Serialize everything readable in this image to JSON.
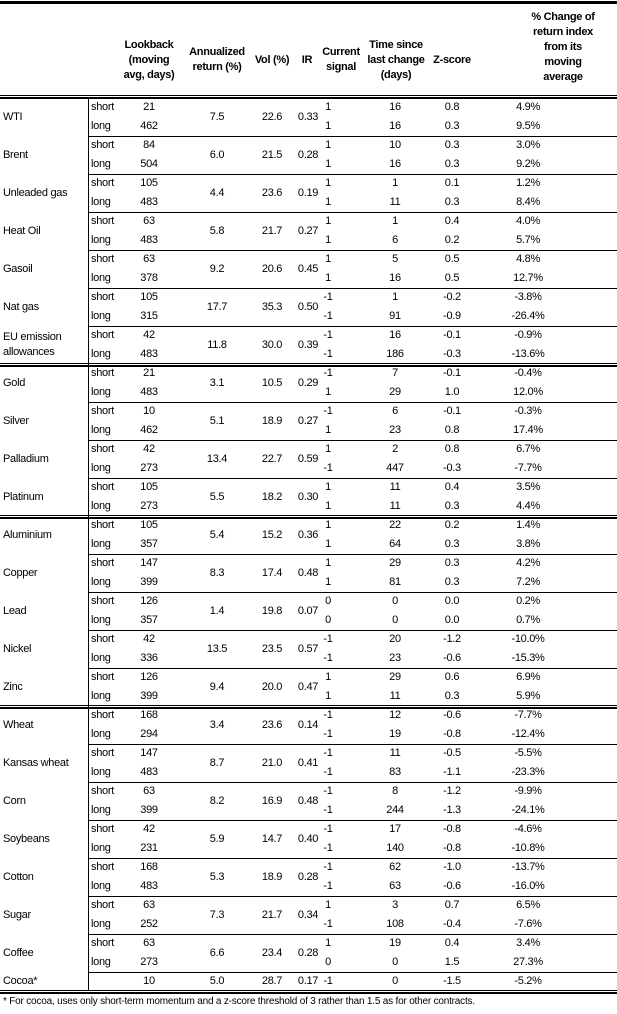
{
  "headers": {
    "lookback": [
      "Lookback",
      "(moving",
      "avg, days)"
    ],
    "annualized": [
      "Annualized",
      "return (%)"
    ],
    "vol": [
      "Vol (%)"
    ],
    "ir": [
      "IR"
    ],
    "signal": [
      "Current",
      "signal"
    ],
    "time": [
      "Time since",
      "last change",
      "(days)"
    ],
    "zscore": [
      "Z-score"
    ],
    "pct": [
      "% Change of",
      "return index",
      "from its",
      "moving",
      "average"
    ]
  },
  "groups": [
    {
      "commodities": [
        {
          "name": [
            "WTI"
          ],
          "ann": "7.5",
          "vol": "22.6",
          "ir": "0.33",
          "rows": [
            {
              "term": "short",
              "lookback": "21",
              "signal": "1",
              "time": "16",
              "z": "0.8",
              "pct": "4.9%"
            },
            {
              "term": "long",
              "lookback": "462",
              "signal": "1",
              "time": "16",
              "z": "0.3",
              "pct": "9.5%"
            }
          ]
        },
        {
          "name": [
            "Brent"
          ],
          "ann": "6.0",
          "vol": "21.5",
          "ir": "0.28",
          "rows": [
            {
              "term": "short",
              "lookback": "84",
              "signal": "1",
              "time": "10",
              "z": "0.3",
              "pct": "3.0%"
            },
            {
              "term": "long",
              "lookback": "504",
              "signal": "1",
              "time": "16",
              "z": "0.3",
              "pct": "9.2%"
            }
          ]
        },
        {
          "name": [
            "Unleaded gas"
          ],
          "ann": "4.4",
          "vol": "23.6",
          "ir": "0.19",
          "rows": [
            {
              "term": "short",
              "lookback": "105",
              "signal": "1",
              "time": "1",
              "z": "0.1",
              "pct": "1.2%"
            },
            {
              "term": "long",
              "lookback": "483",
              "signal": "1",
              "time": "11",
              "z": "0.3",
              "pct": "8.4%"
            }
          ]
        },
        {
          "name": [
            "Heat Oil"
          ],
          "ann": "5.8",
          "vol": "21.7",
          "ir": "0.27",
          "rows": [
            {
              "term": "short",
              "lookback": "63",
              "signal": "1",
              "time": "1",
              "z": "0.4",
              "pct": "4.0%"
            },
            {
              "term": "long",
              "lookback": "483",
              "signal": "1",
              "time": "6",
              "z": "0.2",
              "pct": "5.7%"
            }
          ]
        },
        {
          "name": [
            "Gasoil"
          ],
          "ann": "9.2",
          "vol": "20.6",
          "ir": "0.45",
          "rows": [
            {
              "term": "short",
              "lookback": "63",
              "signal": "1",
              "time": "5",
              "z": "0.5",
              "pct": "4.8%"
            },
            {
              "term": "long",
              "lookback": "378",
              "signal": "1",
              "time": "16",
              "z": "0.5",
              "pct": "12.7%"
            }
          ]
        },
        {
          "name": [
            "Nat gas"
          ],
          "ann": "17.7",
          "vol": "35.3",
          "ir": "0.50",
          "rows": [
            {
              "term": "short",
              "lookback": "105",
              "signal": "-1",
              "time": "1",
              "z": "-0.2",
              "pct": "-3.8%"
            },
            {
              "term": "long",
              "lookback": "315",
              "signal": "-1",
              "time": "91",
              "z": "-0.9",
              "pct": "-26.4%"
            }
          ]
        },
        {
          "name": [
            "EU emission",
            "allowances"
          ],
          "ann": "11.8",
          "vol": "30.0",
          "ir": "0.39",
          "rows": [
            {
              "term": "short",
              "lookback": "42",
              "signal": "-1",
              "time": "16",
              "z": "-0.1",
              "pct": "-0.9%"
            },
            {
              "term": "long",
              "lookback": "483",
              "signal": "-1",
              "time": "186",
              "z": "-0.3",
              "pct": "-13.6%"
            }
          ]
        }
      ]
    },
    {
      "commodities": [
        {
          "name": [
            "Gold"
          ],
          "ann": "3.1",
          "vol": "10.5",
          "ir": "0.29",
          "rows": [
            {
              "term": "short",
              "lookback": "21",
              "signal": "-1",
              "time": "7",
              "z": "-0.1",
              "pct": "-0.4%"
            },
            {
              "term": "long",
              "lookback": "483",
              "signal": "1",
              "time": "29",
              "z": "1.0",
              "pct": "12.0%"
            }
          ]
        },
        {
          "name": [
            "Silver"
          ],
          "ann": "5.1",
          "vol": "18.9",
          "ir": "0.27",
          "rows": [
            {
              "term": "short",
              "lookback": "10",
              "signal": "-1",
              "time": "6",
              "z": "-0.1",
              "pct": "-0.3%"
            },
            {
              "term": "long",
              "lookback": "462",
              "signal": "1",
              "time": "23",
              "z": "0.8",
              "pct": "17.4%"
            }
          ]
        },
        {
          "name": [
            "Palladium"
          ],
          "ann": "13.4",
          "vol": "22.7",
          "ir": "0.59",
          "rows": [
            {
              "term": "short",
              "lookback": "42",
              "signal": "1",
              "time": "2",
              "z": "0.8",
              "pct": "6.7%"
            },
            {
              "term": "long",
              "lookback": "273",
              "signal": "-1",
              "time": "447",
              "z": "-0.3",
              "pct": "-7.7%"
            }
          ]
        },
        {
          "name": [
            "Platinum"
          ],
          "ann": "5.5",
          "vol": "18.2",
          "ir": "0.30",
          "rows": [
            {
              "term": "short",
              "lookback": "105",
              "signal": "1",
              "time": "11",
              "z": "0.4",
              "pct": "3.5%"
            },
            {
              "term": "long",
              "lookback": "273",
              "signal": "1",
              "time": "11",
              "z": "0.3",
              "pct": "4.4%"
            }
          ]
        }
      ]
    },
    {
      "commodities": [
        {
          "name": [
            "Aluminium"
          ],
          "ann": "5.4",
          "vol": "15.2",
          "ir": "0.36",
          "rows": [
            {
              "term": "short",
              "lookback": "105",
              "signal": "1",
              "time": "22",
              "z": "0.2",
              "pct": "1.4%"
            },
            {
              "term": "long",
              "lookback": "357",
              "signal": "1",
              "time": "64",
              "z": "0.3",
              "pct": "3.8%"
            }
          ]
        },
        {
          "name": [
            "Copper"
          ],
          "ann": "8.3",
          "vol": "17.4",
          "ir": "0.48",
          "rows": [
            {
              "term": "short",
              "lookback": "147",
              "signal": "1",
              "time": "29",
              "z": "0.3",
              "pct": "4.2%"
            },
            {
              "term": "long",
              "lookback": "399",
              "signal": "1",
              "time": "81",
              "z": "0.3",
              "pct": "7.2%"
            }
          ]
        },
        {
          "name": [
            "Lead"
          ],
          "ann": "1.4",
          "vol": "19.8",
          "ir": "0.07",
          "rows": [
            {
              "term": "short",
              "lookback": "126",
              "signal": "0",
              "time": "0",
              "z": "0.0",
              "pct": "0.2%"
            },
            {
              "term": "long",
              "lookback": "357",
              "signal": "0",
              "time": "0",
              "z": "0.0",
              "pct": "0.7%"
            }
          ]
        },
        {
          "name": [
            "Nickel"
          ],
          "ann": "13.5",
          "vol": "23.5",
          "ir": "0.57",
          "rows": [
            {
              "term": "short",
              "lookback": "42",
              "signal": "-1",
              "time": "20",
              "z": "-1.2",
              "pct": "-10.0%"
            },
            {
              "term": "long",
              "lookback": "336",
              "signal": "-1",
              "time": "23",
              "z": "-0.6",
              "pct": "-15.3%"
            }
          ]
        },
        {
          "name": [
            "Zinc"
          ],
          "ann": "9.4",
          "vol": "20.0",
          "ir": "0.47",
          "rows": [
            {
              "term": "short",
              "lookback": "126",
              "signal": "1",
              "time": "29",
              "z": "0.6",
              "pct": "6.9%"
            },
            {
              "term": "long",
              "lookback": "399",
              "signal": "1",
              "time": "11",
              "z": "0.3",
              "pct": "5.9%"
            }
          ]
        }
      ]
    },
    {
      "commodities": [
        {
          "name": [
            "Wheat"
          ],
          "ann": "3.4",
          "vol": "23.6",
          "ir": "0.14",
          "rows": [
            {
              "term": "short",
              "lookback": "168",
              "signal": "-1",
              "time": "12",
              "z": "-0.6",
              "pct": "-7.7%"
            },
            {
              "term": "long",
              "lookback": "294",
              "signal": "-1",
              "time": "19",
              "z": "-0.8",
              "pct": "-12.4%"
            }
          ]
        },
        {
          "name": [
            "Kansas wheat"
          ],
          "ann": "8.7",
          "vol": "21.0",
          "ir": "0.41",
          "rows": [
            {
              "term": "short",
              "lookback": "147",
              "signal": "-1",
              "time": "11",
              "z": "-0.5",
              "pct": "-5.5%"
            },
            {
              "term": "long",
              "lookback": "483",
              "signal": "-1",
              "time": "83",
              "z": "-1.1",
              "pct": "-23.3%"
            }
          ]
        },
        {
          "name": [
            "Corn"
          ],
          "ann": "8.2",
          "vol": "16.9",
          "ir": "0.48",
          "rows": [
            {
              "term": "short",
              "lookback": "63",
              "signal": "-1",
              "time": "8",
              "z": "-1.2",
              "pct": "-9.9%"
            },
            {
              "term": "long",
              "lookback": "399",
              "signal": "-1",
              "time": "244",
              "z": "-1.3",
              "pct": "-24.1%"
            }
          ]
        },
        {
          "name": [
            "Soybeans"
          ],
          "ann": "5.9",
          "vol": "14.7",
          "ir": "0.40",
          "rows": [
            {
              "term": "short",
              "lookback": "42",
              "signal": "-1",
              "time": "17",
              "z": "-0.8",
              "pct": "-4.6%"
            },
            {
              "term": "long",
              "lookback": "231",
              "signal": "-1",
              "time": "140",
              "z": "-0.8",
              "pct": "-10.8%"
            }
          ]
        },
        {
          "name": [
            "Cotton"
          ],
          "ann": "5.3",
          "vol": "18.9",
          "ir": "0.28",
          "rows": [
            {
              "term": "short",
              "lookback": "168",
              "signal": "-1",
              "time": "62",
              "z": "-1.0",
              "pct": "-13.7%"
            },
            {
              "term": "long",
              "lookback": "483",
              "signal": "-1",
              "time": "63",
              "z": "-0.6",
              "pct": "-16.0%"
            }
          ]
        },
        {
          "name": [
            "Sugar"
          ],
          "ann": "7.3",
          "vol": "21.7",
          "ir": "0.34",
          "rows": [
            {
              "term": "short",
              "lookback": "63",
              "signal": "1",
              "time": "3",
              "z": "0.7",
              "pct": "6.5%"
            },
            {
              "term": "long",
              "lookback": "252",
              "signal": "-1",
              "time": "108",
              "z": "-0.4",
              "pct": "-7.6%"
            }
          ]
        },
        {
          "name": [
            "Coffee"
          ],
          "ann": "6.6",
          "vol": "23.4",
          "ir": "0.28",
          "rows": [
            {
              "term": "short",
              "lookback": "63",
              "signal": "1",
              "time": "19",
              "z": "0.4",
              "pct": "3.4%"
            },
            {
              "term": "long",
              "lookback": "273",
              "signal": "0",
              "time": "0",
              "z": "1.5",
              "pct": "27.3%"
            }
          ]
        },
        {
          "name": [
            "Cocoa*"
          ],
          "ann": "5.0",
          "vol": "28.7",
          "ir": "0.17",
          "rows": [
            {
              "term": "",
              "lookback": "10",
              "signal": "-1",
              "time": "0",
              "z": "-1.5",
              "pct": "-5.2%"
            }
          ]
        }
      ]
    }
  ],
  "footnote": "* For cocoa, uses only short-term momentum and a z-score threshold of 3 rather than 1.5 as for other contracts."
}
